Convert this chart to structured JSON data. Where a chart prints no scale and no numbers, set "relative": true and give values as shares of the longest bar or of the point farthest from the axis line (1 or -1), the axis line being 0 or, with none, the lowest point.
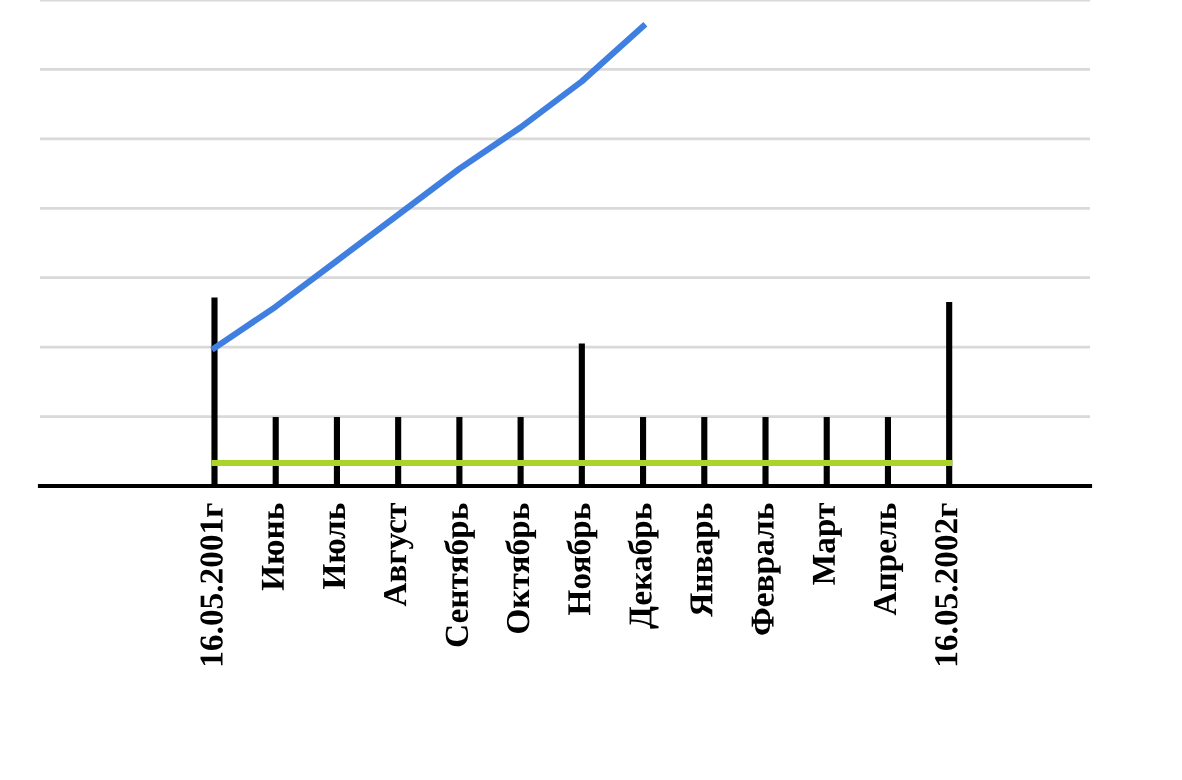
{
  "chart_data": {
    "type": "line",
    "relative": true,
    "grid": "y",
    "tick_labels": "x",
    "categories": [
      "16.05.2001г",
      "Июнь",
      "Июль",
      "Август",
      "Сентябрь",
      "Октябрь",
      "Ноябрь",
      "Декабрь",
      "Январь",
      "Февраль",
      "Март",
      "Апрель",
      "16.05.2002г"
    ],
    "series": [
      {
        "type": "bar",
        "color": "#000000",
        "values": [
          0.41,
          0.15,
          0.15,
          0.15,
          0.15,
          0.15,
          0.31,
          0.15,
          0.15,
          0.15,
          0.15,
          0.15,
          0.4
        ]
      },
      {
        "color": "#aad42a",
        "values": [
          0.05,
          0.05,
          0.05,
          0.05,
          0.05,
          0.05,
          0.05,
          0.05,
          0.05,
          0.05,
          0.05,
          0.05,
          0.05
        ]
      },
      {
        "color": "#3f7fe0",
        "values": [
          0.3,
          0.39,
          0.49,
          0.59,
          0.69,
          0.78,
          0.88,
          1.0,
          null,
          null,
          null,
          null,
          null
        ]
      }
    ]
  }
}
